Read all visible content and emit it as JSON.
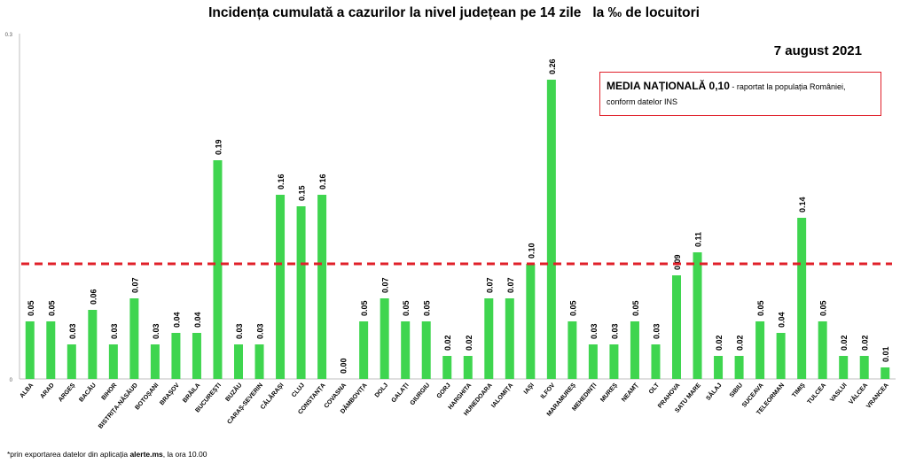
{
  "header": {
    "title": "Incidența cumulată a cazurilor la nivel județean pe 14 zile   la ‰ de locuitori",
    "date": "7 august 2021"
  },
  "media_box": {
    "label": "MEDIA NAȚIONALĂ 0,10",
    "note_line1": " - raportat la populația României,",
    "note_line2": "conform datelor INS"
  },
  "footnote": {
    "prefix": "*prin exportarea datelor din aplicația ",
    "app": "alerte.ms",
    "suffix": ", la ora 10.00"
  },
  "colors": {
    "bar": "#3fd54f",
    "reference_line": "#e0202a",
    "axis": "#bfbfbf"
  },
  "chart_data": {
    "type": "bar",
    "categories": [
      "ALBA",
      "ARAD",
      "ARGEȘ",
      "BACĂU",
      "BIHOR",
      "BISTRIȚA-NĂSĂUD",
      "BOTOȘANI",
      "BRAȘOV",
      "BRĂILA",
      "BUCUREȘTI",
      "BUZĂU",
      "CARAȘ-SEVERIN",
      "CĂLĂRAȘI",
      "CLUJ",
      "CONSTANȚA",
      "COVASNA",
      "DÂMBOVIȚA",
      "DOLJ",
      "GALAȚI",
      "GIURGIU",
      "GORJ",
      "HARGHITA",
      "HUNEDOARA",
      "IALOMIȚA",
      "IAȘI",
      "ILFOV",
      "MARAMUREȘ",
      "MEHEDINȚI",
      "MUREȘ",
      "NEAMȚ",
      "OLT",
      "PRAHOVA",
      "SATU MARE",
      "SĂLAJ",
      "SIBIU",
      "SUCEAVA",
      "TELEORMAN",
      "TIMIȘ",
      "TULCEA",
      "VASLUI",
      "VÂLCEA",
      "VRANCEA"
    ],
    "values": [
      0.05,
      0.05,
      0.03,
      0.06,
      0.03,
      0.07,
      0.03,
      0.04,
      0.04,
      0.19,
      0.03,
      0.03,
      0.16,
      0.15,
      0.16,
      0.0,
      0.05,
      0.07,
      0.05,
      0.05,
      0.02,
      0.02,
      0.07,
      0.07,
      0.1,
      0.26,
      0.05,
      0.03,
      0.03,
      0.05,
      0.03,
      0.09,
      0.11,
      0.02,
      0.02,
      0.05,
      0.04,
      0.14,
      0.05,
      0.02,
      0.02,
      0.01
    ],
    "labels": [
      "0.05",
      "0.05",
      "0.03",
      "0.06",
      "0.03",
      "0.07",
      "0.03",
      "0.04",
      "0.04",
      "0.19",
      "0.03",
      "0.03",
      "0.16",
      "0.15",
      "0.16",
      "0.00",
      "0.05",
      "0.07",
      "0.05",
      "0.05",
      "0.02",
      "0.02",
      "0.07",
      "0.07",
      "0.10",
      "0.26",
      "0.05",
      "0.03",
      "0.03",
      "0.05",
      "0.03",
      "0.09",
      "0.11",
      "0.02",
      "0.02",
      "0.05",
      "0.04",
      "0.14",
      "0.05",
      "0.02",
      "0.02",
      "0.01"
    ],
    "reference_value": 0.1,
    "ylim": [
      0,
      0.3
    ],
    "yticks": [
      "0",
      "0.3"
    ],
    "grid": false
  }
}
